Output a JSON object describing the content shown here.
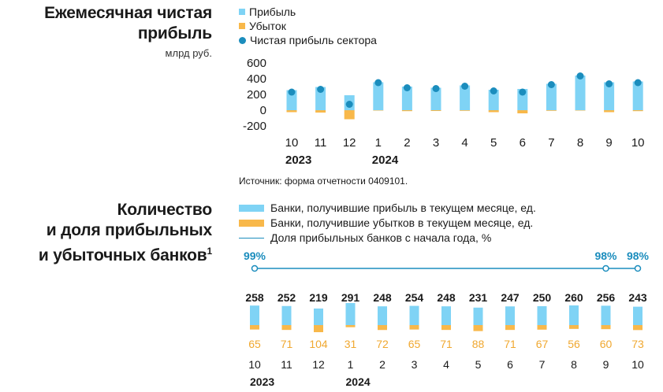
{
  "chart1": {
    "title_line1": "Ежемесячная чистая",
    "title_line2": "прибыль",
    "unit": "млрд руб.",
    "legend": {
      "profit": "Прибыль",
      "loss": "Убыток",
      "net": "Чистая прибыль сектора"
    },
    "source": "Источник: форма отчетности 0409101."
  },
  "chart2": {
    "title_line1": "Количество",
    "title_line2": "и доля прибыльных",
    "title_line3": "и убыточных банков",
    "title_sup": "1",
    "legend": {
      "profit_banks": "Банки, получившие прибыль в текущем месяце, ед.",
      "loss_banks": "Банки, получившие убытков в текущем месяце, ед.",
      "share": "Доля прибыльных банков с начала года, %"
    }
  },
  "colors": {
    "profit": "#7fd3f5",
    "loss": "#f8b84a",
    "net": "#1b8dbd",
    "loss_label": "#f0a830"
  },
  "chart_data": [
    {
      "type": "bar",
      "categories": [
        "10",
        "11",
        "12",
        "1",
        "2",
        "3",
        "4",
        "5",
        "6",
        "7",
        "8",
        "9",
        "10"
      ],
      "year_labels": [
        {
          "text": "2023",
          "index": 0
        },
        {
          "text": "2024",
          "index": 3
        }
      ],
      "yticks": [
        "600",
        "400",
        "200",
        "0",
        "-200"
      ],
      "ylim": [
        -200,
        600
      ],
      "series": [
        {
          "name": "Прибыль",
          "values": [
            255,
            295,
            190,
            355,
            300,
            285,
            315,
            260,
            270,
            335,
            440,
            355,
            365
          ]
        },
        {
          "name": "Убыток",
          "values": [
            -25,
            -30,
            -115,
            -5,
            -12,
            -10,
            -8,
            -25,
            -40,
            -8,
            -5,
            -25,
            -12
          ]
        },
        {
          "name": "Чистая прибыль сектора",
          "type": "scatter",
          "values": [
            230,
            265,
            75,
            350,
            285,
            275,
            305,
            245,
            230,
            325,
            435,
            335,
            350
          ]
        }
      ]
    },
    {
      "type": "bar",
      "categories": [
        "10",
        "11",
        "12",
        "1",
        "2",
        "3",
        "4",
        "5",
        "6",
        "7",
        "8",
        "9",
        "10"
      ],
      "year_labels": [
        {
          "text": "2023",
          "index": 0
        },
        {
          "text": "2024",
          "index": 3
        }
      ],
      "series": [
        {
          "name": "Банки, получившие прибыль в текущем месяце, ед.",
          "values": [
            258,
            252,
            219,
            291,
            248,
            254,
            248,
            231,
            247,
            250,
            260,
            256,
            243
          ]
        },
        {
          "name": "Банки, получившие убытков в текущем месяце, ед.",
          "values": [
            65,
            71,
            104,
            31,
            72,
            65,
            71,
            88,
            71,
            67,
            56,
            60,
            73
          ]
        },
        {
          "name": "Доля прибыльных банков с начала года, %",
          "type": "line",
          "values": [
            99,
            null,
            null,
            null,
            null,
            null,
            null,
            null,
            null,
            null,
            null,
            98,
            98
          ],
          "labels": [
            "99%",
            "",
            "",
            "",
            "",
            "",
            "",
            "",
            "",
            "",
            "",
            "98%",
            "98%"
          ]
        }
      ]
    }
  ]
}
